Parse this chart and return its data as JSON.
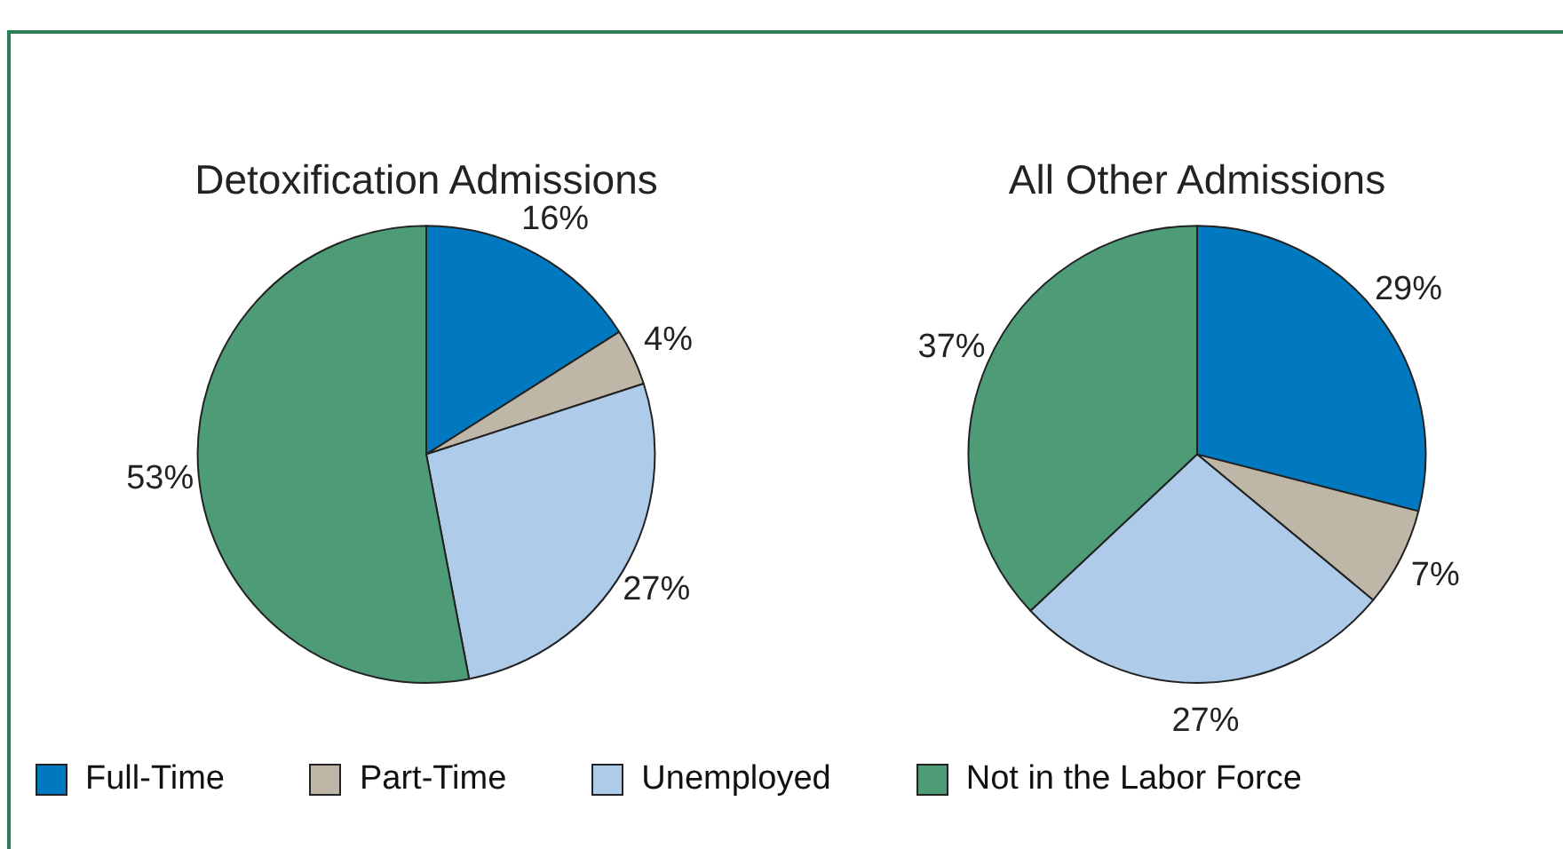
{
  "chart_data": [
    {
      "type": "pie",
      "title": "Detoxification Admissions",
      "categories": [
        "Full-Time",
        "Part-Time",
        "Unemployed",
        "Not in the Labor Force"
      ],
      "values": [
        16,
        4,
        27,
        53
      ],
      "value_labels": [
        "16%",
        "4%",
        "27%",
        "53%"
      ],
      "colors": [
        "#0079c1",
        "#beb6a6",
        "#afcbea",
        "#4e9b78"
      ],
      "legend": "bottom"
    },
    {
      "type": "pie",
      "title": "All Other Admissions",
      "categories": [
        null,
        null,
        null,
        null
      ],
      "values": [
        29,
        7,
        27,
        37
      ],
      "value_labels": [
        "29%",
        "7%",
        "27%",
        "37%"
      ],
      "colors": [
        "#0079c1",
        "#beb6a6",
        "#afcbea",
        "#4e9b78"
      ]
    }
  ]
}
